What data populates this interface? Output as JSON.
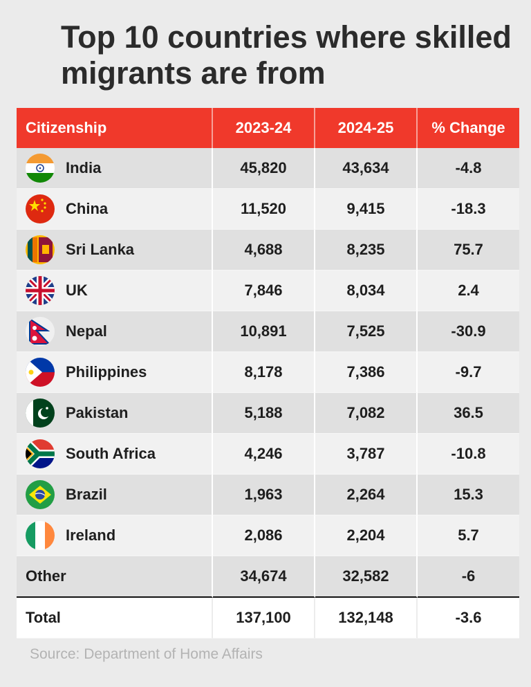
{
  "title": "Top 10 countries where skilled migrants are from",
  "table": {
    "headers": [
      "Citizenship",
      "2023-24",
      "2024-25",
      "% Change"
    ],
    "rows": [
      {
        "country": "India",
        "flag": "india-flag-icon",
        "y2023": "45,820",
        "y2024": "43,634",
        "change": "-4.8"
      },
      {
        "country": "China",
        "flag": "china-flag-icon",
        "y2023": "11,520",
        "y2024": "9,415",
        "change": "-18.3"
      },
      {
        "country": "Sri Lanka",
        "flag": "sri-lanka-flag-icon",
        "y2023": "4,688",
        "y2024": "8,235",
        "change": "75.7"
      },
      {
        "country": "UK",
        "flag": "uk-flag-icon",
        "y2023": "7,846",
        "y2024": "8,034",
        "change": "2.4"
      },
      {
        "country": "Nepal",
        "flag": "nepal-flag-icon",
        "y2023": "10,891",
        "y2024": "7,525",
        "change": "-30.9"
      },
      {
        "country": "Philippines",
        "flag": "philippines-flag-icon",
        "y2023": "8,178",
        "y2024": "7,386",
        "change": "-9.7"
      },
      {
        "country": "Pakistan",
        "flag": "pakistan-flag-icon",
        "y2023": "5,188",
        "y2024": "7,082",
        "change": "36.5"
      },
      {
        "country": "South Africa",
        "flag": "south-africa-flag-icon",
        "y2023": "4,246",
        "y2024": "3,787",
        "change": "-10.8"
      },
      {
        "country": "Brazil",
        "flag": "brazil-flag-icon",
        "y2023": "1,963",
        "y2024": "2,264",
        "change": "15.3"
      },
      {
        "country": "Ireland",
        "flag": "ireland-flag-icon",
        "y2023": "2,086",
        "y2024": "2,204",
        "change": "5.7"
      }
    ],
    "other": {
      "label": "Other",
      "y2023": "34,674",
      "y2024": "32,582",
      "change": "-6"
    },
    "total": {
      "label": "Total",
      "y2023": "137,100",
      "y2024": "132,148",
      "change": "-3.6"
    }
  },
  "source": "Source: Department of Home Affairs",
  "colors": {
    "header_bg": "#f0392b",
    "title": "#2b2b2b",
    "source": "#b3b3b3"
  },
  "chart_data": {
    "type": "table",
    "title": "Top 10 countries where skilled migrants are from",
    "columns": [
      "Citizenship",
      "2023-24",
      "2024-25",
      "% Change"
    ],
    "rows": [
      [
        "India",
        45820,
        43634,
        -4.8
      ],
      [
        "China",
        11520,
        9415,
        -18.3
      ],
      [
        "Sri Lanka",
        4688,
        8235,
        75.7
      ],
      [
        "UK",
        7846,
        8034,
        2.4
      ],
      [
        "Nepal",
        10891,
        7525,
        -30.9
      ],
      [
        "Philippines",
        8178,
        7386,
        -9.7
      ],
      [
        "Pakistan",
        5188,
        7082,
        36.5
      ],
      [
        "South Africa",
        4246,
        3787,
        -10.8
      ],
      [
        "Brazil",
        1963,
        2264,
        15.3
      ],
      [
        "Ireland",
        2086,
        2204,
        5.7
      ],
      [
        "Other",
        34674,
        32582,
        -6
      ],
      [
        "Total",
        137100,
        132148,
        -3.6
      ]
    ]
  }
}
